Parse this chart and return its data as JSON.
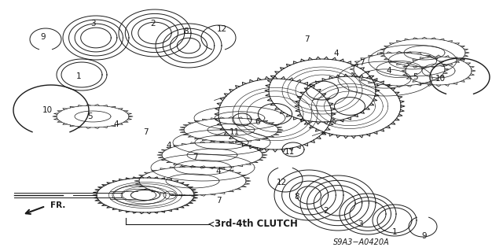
{
  "title": "3rd-4th CLUTCH",
  "part_code": "S9A3−A0420A",
  "bg_color": "#ffffff",
  "line_color": "#1a1a1a",
  "fig_width": 6.4,
  "fig_height": 3.19,
  "dpi": 100,
  "left_labels": [
    [
      "9",
      55,
      47
    ],
    [
      "3",
      118,
      30
    ],
    [
      "1",
      100,
      97
    ],
    [
      "2",
      195,
      30
    ],
    [
      "8",
      237,
      40
    ],
    [
      "12",
      282,
      37
    ],
    [
      "10",
      60,
      140
    ],
    [
      "5",
      115,
      148
    ],
    [
      "4",
      148,
      158
    ],
    [
      "7",
      185,
      168
    ],
    [
      "4",
      215,
      185
    ],
    [
      "7",
      248,
      200
    ],
    [
      "4",
      278,
      218
    ],
    [
      "11",
      298,
      168
    ],
    [
      "6",
      328,
      155
    ],
    [
      "7",
      278,
      255
    ]
  ],
  "right_labels": [
    [
      "7",
      390,
      50
    ],
    [
      "4",
      428,
      68
    ],
    [
      "7",
      460,
      80
    ],
    [
      "4",
      495,
      90
    ],
    [
      "5",
      528,
      98
    ],
    [
      "10",
      560,
      100
    ],
    [
      "11",
      368,
      193
    ],
    [
      "12",
      358,
      232
    ],
    [
      "8",
      378,
      250
    ],
    [
      "2",
      415,
      268
    ],
    [
      "3",
      458,
      285
    ],
    [
      "1",
      502,
      295
    ],
    [
      "9",
      540,
      300
    ]
  ]
}
